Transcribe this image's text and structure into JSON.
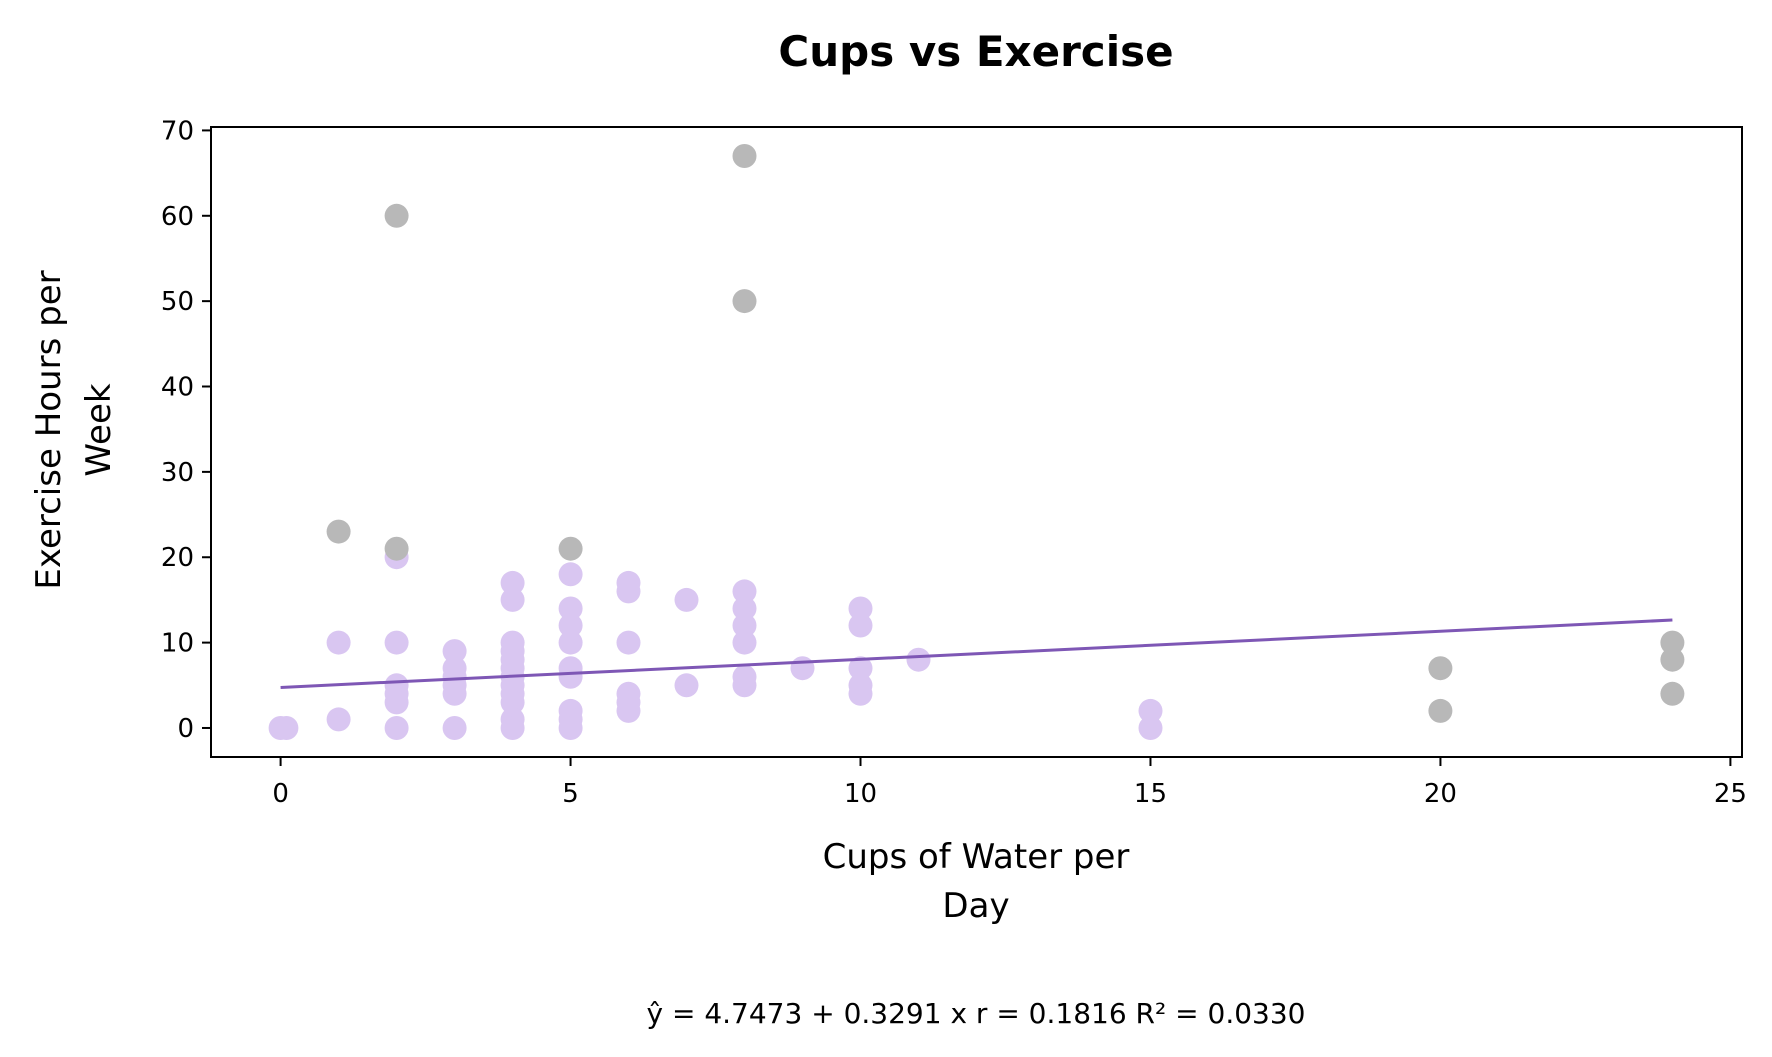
{
  "chart_data": {
    "type": "scatter",
    "title": "Cups vs Exercise",
    "xlabel_lines": [
      "Cups of Water per",
      "Day"
    ],
    "ylabel_lines": [
      "Exercise Hours per",
      "Week"
    ],
    "xlim": [
      -1.2,
      25.2
    ],
    "ylim": [
      -3.4,
      70.4
    ],
    "xticks": [
      0,
      5,
      10,
      15,
      20,
      25
    ],
    "yticks": [
      0,
      10,
      20,
      30,
      40,
      50,
      60,
      70
    ],
    "grid": false,
    "colors": {
      "inliers": "#d9c6f1",
      "outliers": "#b8b8b8",
      "regression_line": "#7e57b5"
    },
    "series": [
      {
        "role": "inliers",
        "points": [
          [
            0,
            0
          ],
          [
            0.1,
            0
          ],
          [
            1,
            10
          ],
          [
            1,
            1
          ],
          [
            2,
            20
          ],
          [
            2,
            10
          ],
          [
            2,
            5
          ],
          [
            2,
            4
          ],
          [
            2,
            3
          ],
          [
            2,
            0
          ],
          [
            3,
            9
          ],
          [
            3,
            7
          ],
          [
            3,
            6
          ],
          [
            3,
            5
          ],
          [
            3,
            4
          ],
          [
            3,
            0
          ],
          [
            4,
            17
          ],
          [
            4,
            15
          ],
          [
            4,
            10
          ],
          [
            4,
            9
          ],
          [
            4,
            8
          ],
          [
            4,
            7
          ],
          [
            4,
            6
          ],
          [
            4,
            5
          ],
          [
            4,
            4
          ],
          [
            4,
            3
          ],
          [
            4,
            1
          ],
          [
            4,
            0
          ],
          [
            5,
            18
          ],
          [
            5,
            14
          ],
          [
            5,
            12
          ],
          [
            5,
            10
          ],
          [
            5,
            7
          ],
          [
            5,
            6
          ],
          [
            5,
            2
          ],
          [
            5,
            1
          ],
          [
            5,
            0
          ],
          [
            6,
            17
          ],
          [
            6,
            16
          ],
          [
            6,
            10
          ],
          [
            6,
            4
          ],
          [
            6,
            3
          ],
          [
            6,
            2
          ],
          [
            7,
            15
          ],
          [
            7,
            5
          ],
          [
            8,
            16
          ],
          [
            8,
            14
          ],
          [
            8,
            12
          ],
          [
            8,
            10
          ],
          [
            8,
            6
          ],
          [
            8,
            5
          ],
          [
            9,
            7
          ],
          [
            10,
            14
          ],
          [
            10,
            12
          ],
          [
            10,
            7
          ],
          [
            10,
            5
          ],
          [
            10,
            4
          ],
          [
            11,
            8
          ],
          [
            15,
            2
          ],
          [
            15,
            0
          ]
        ]
      },
      {
        "role": "outliers",
        "points": [
          [
            1,
            23
          ],
          [
            2,
            60
          ],
          [
            2,
            21
          ],
          [
            5,
            21
          ],
          [
            8,
            67
          ],
          [
            8,
            50
          ],
          [
            20,
            7
          ],
          [
            20,
            2
          ],
          [
            24,
            10
          ],
          [
            24,
            8
          ],
          [
            24,
            4
          ]
        ]
      }
    ],
    "regression": {
      "intercept": 4.7473,
      "slope": 0.3291,
      "x_range": [
        0,
        24
      ]
    },
    "annotation": "ŷ = 4.7473 + 0.3291 x    r = 0.1816     R² = 0.0330"
  }
}
